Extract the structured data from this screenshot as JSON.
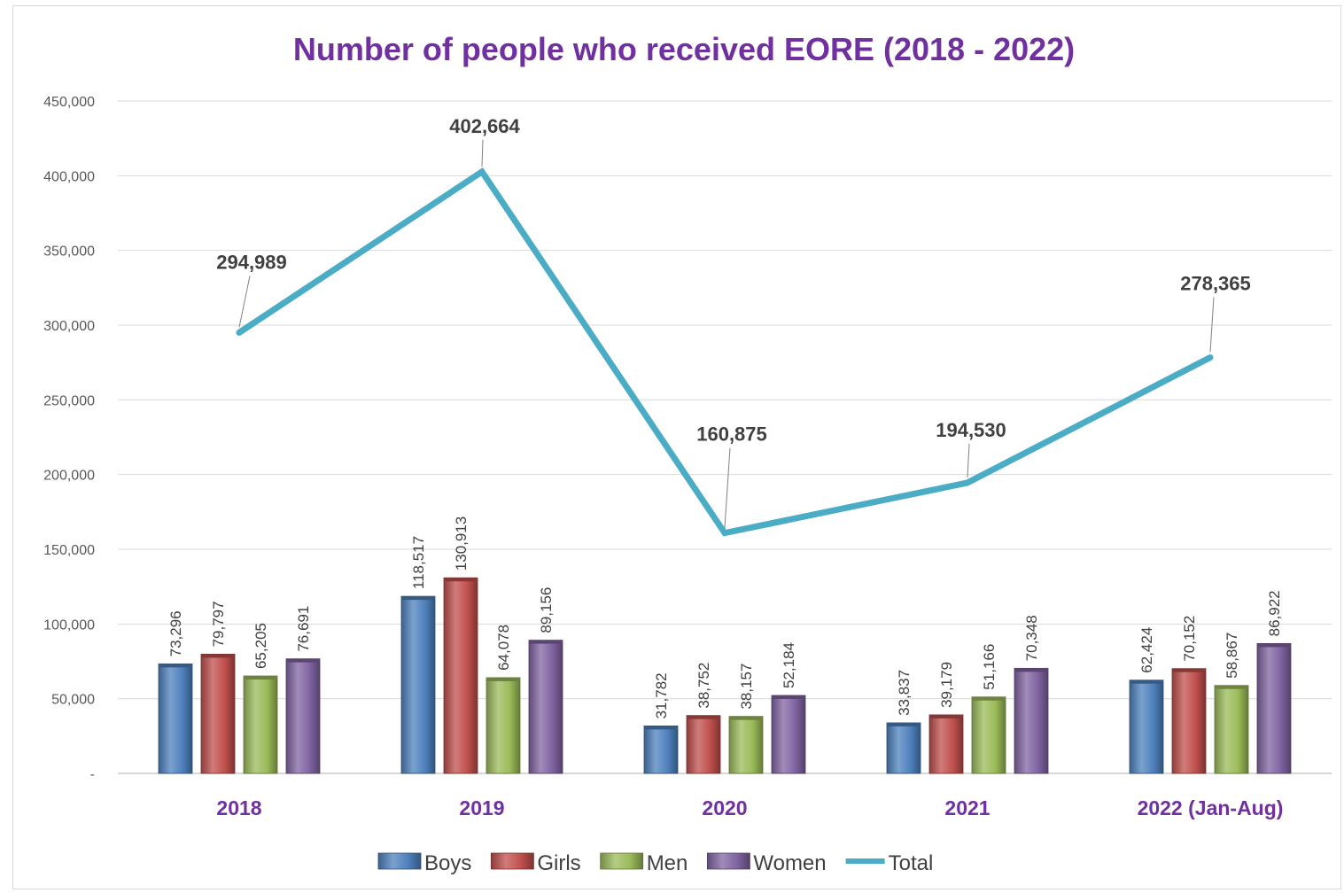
{
  "chart_data": {
    "type": "bar",
    "title": "Number of people who received EORE (2018 - 2022)",
    "categories": [
      "2018",
      "2019",
      "2020",
      "2021",
      "2022 (Jan-Aug)"
    ],
    "y_ticks": [
      "-",
      "50,000",
      "100,000",
      "150,000",
      "200,000",
      "250,000",
      "300,000",
      "350,000",
      "400,000",
      "450,000"
    ],
    "ylim": [
      0,
      450000
    ],
    "grid": true,
    "legend_position": "bottom",
    "series": [
      {
        "name": "Boys",
        "kind": "bar",
        "color": "#4f81bd",
        "values": [
          73296,
          118517,
          31782,
          33837,
          62424
        ],
        "labels": [
          "73,296",
          "118,517",
          "31,782",
          "33,837",
          "62,424"
        ]
      },
      {
        "name": "Girls",
        "kind": "bar",
        "color": "#c0504d",
        "values": [
          79797,
          130913,
          38752,
          39179,
          70152
        ],
        "labels": [
          "79,797",
          "130,913",
          "38,752",
          "39,179",
          "70,152"
        ]
      },
      {
        "name": "Men",
        "kind": "bar",
        "color": "#9bbb59",
        "values": [
          65205,
          64078,
          38157,
          51166,
          58867
        ],
        "labels": [
          "65,205",
          "64,078",
          "38,157",
          "51,166",
          "58,867"
        ]
      },
      {
        "name": "Women",
        "kind": "bar",
        "color": "#8064a2",
        "values": [
          76691,
          89156,
          52184,
          70348,
          86922
        ],
        "labels": [
          "76,691",
          "89,156",
          "52,184",
          "70,348",
          "86,922"
        ]
      },
      {
        "name": "Total",
        "kind": "line",
        "color": "#4bacc6",
        "values": [
          294989,
          402664,
          160875,
          194530,
          278365
        ],
        "labels": [
          "294,989",
          "402,664",
          "160,875",
          "194,530",
          "278,365"
        ]
      }
    ]
  }
}
